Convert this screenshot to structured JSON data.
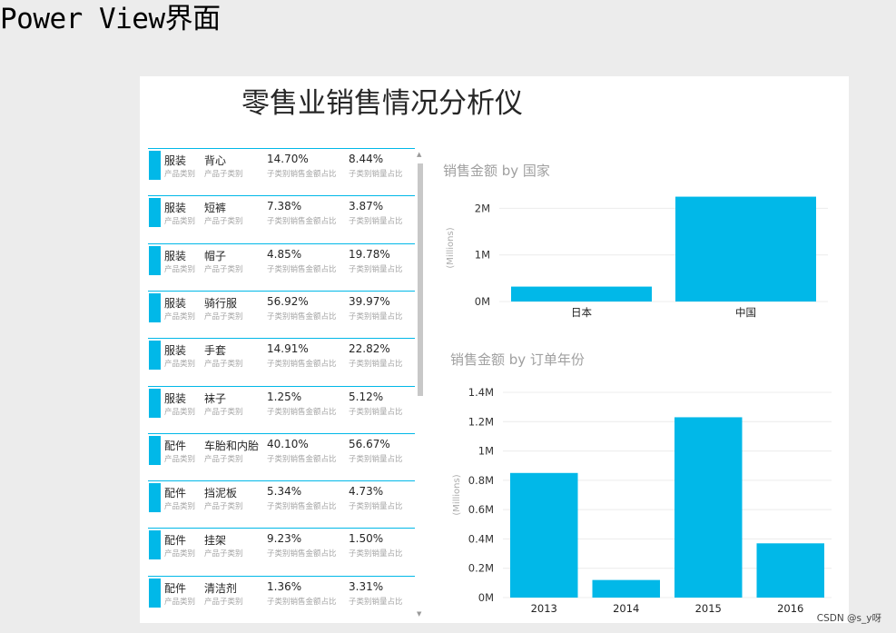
{
  "heading": "Power View界面",
  "dashboard_title": "零售业销售情况分析仪",
  "card_labels": {
    "category": "产品类别",
    "subcategory": "产品子类别",
    "sales_share": "子类别销售金额占比",
    "qty_share": "子类别销量占比"
  },
  "cards": [
    {
      "category": "服装",
      "subcategory": "背心",
      "sales_share": "14.70%",
      "qty_share": "8.44%"
    },
    {
      "category": "服装",
      "subcategory": "短裤",
      "sales_share": "7.38%",
      "qty_share": "3.87%"
    },
    {
      "category": "服装",
      "subcategory": "帽子",
      "sales_share": "4.85%",
      "qty_share": "19.78%"
    },
    {
      "category": "服装",
      "subcategory": "骑行服",
      "sales_share": "56.92%",
      "qty_share": "39.97%"
    },
    {
      "category": "服装",
      "subcategory": "手套",
      "sales_share": "14.91%",
      "qty_share": "22.82%"
    },
    {
      "category": "服装",
      "subcategory": "袜子",
      "sales_share": "1.25%",
      "qty_share": "5.12%"
    },
    {
      "category": "配件",
      "subcategory": "车胎和内胎",
      "sales_share": "40.10%",
      "qty_share": "56.67%"
    },
    {
      "category": "配件",
      "subcategory": "挡泥板",
      "sales_share": "5.34%",
      "qty_share": "4.73%"
    },
    {
      "category": "配件",
      "subcategory": "挂架",
      "sales_share": "9.23%",
      "qty_share": "1.50%"
    },
    {
      "category": "配件",
      "subcategory": "清洁剂",
      "sales_share": "1.36%",
      "qty_share": "3.31%"
    }
  ],
  "scrollbar": {
    "up_glyph": "▲",
    "down_glyph": "▼"
  },
  "chart_data": [
    {
      "type": "bar",
      "title": "销售金额 by 国家",
      "categories": [
        "日本",
        "中国"
      ],
      "values": [
        0.32,
        2.25
      ],
      "ylabel": "(Millions)",
      "ylim": [
        0,
        2.3
      ],
      "yticks": [
        0,
        1,
        2
      ],
      "ytick_labels": [
        "0M",
        "1M",
        "2M"
      ],
      "color": "#01b8e8",
      "grid": true
    },
    {
      "type": "bar",
      "title": "销售金额 by 订单年份",
      "categories": [
        "2013",
        "2014",
        "2015",
        "2016"
      ],
      "values": [
        0.85,
        0.12,
        1.23,
        0.37
      ],
      "ylabel": "(Millions)",
      "ylim": [
        0,
        1.4
      ],
      "yticks": [
        0,
        0.2,
        0.4,
        0.6,
        0.8,
        1,
        1.2,
        1.4
      ],
      "ytick_labels": [
        "0M",
        "0.2M",
        "0.4M",
        "0.6M",
        "0.8M",
        "1M",
        "1.2M",
        "1.4M"
      ],
      "color": "#01b8e8",
      "grid": true
    }
  ],
  "watermark": "CSDN @s_y呀"
}
